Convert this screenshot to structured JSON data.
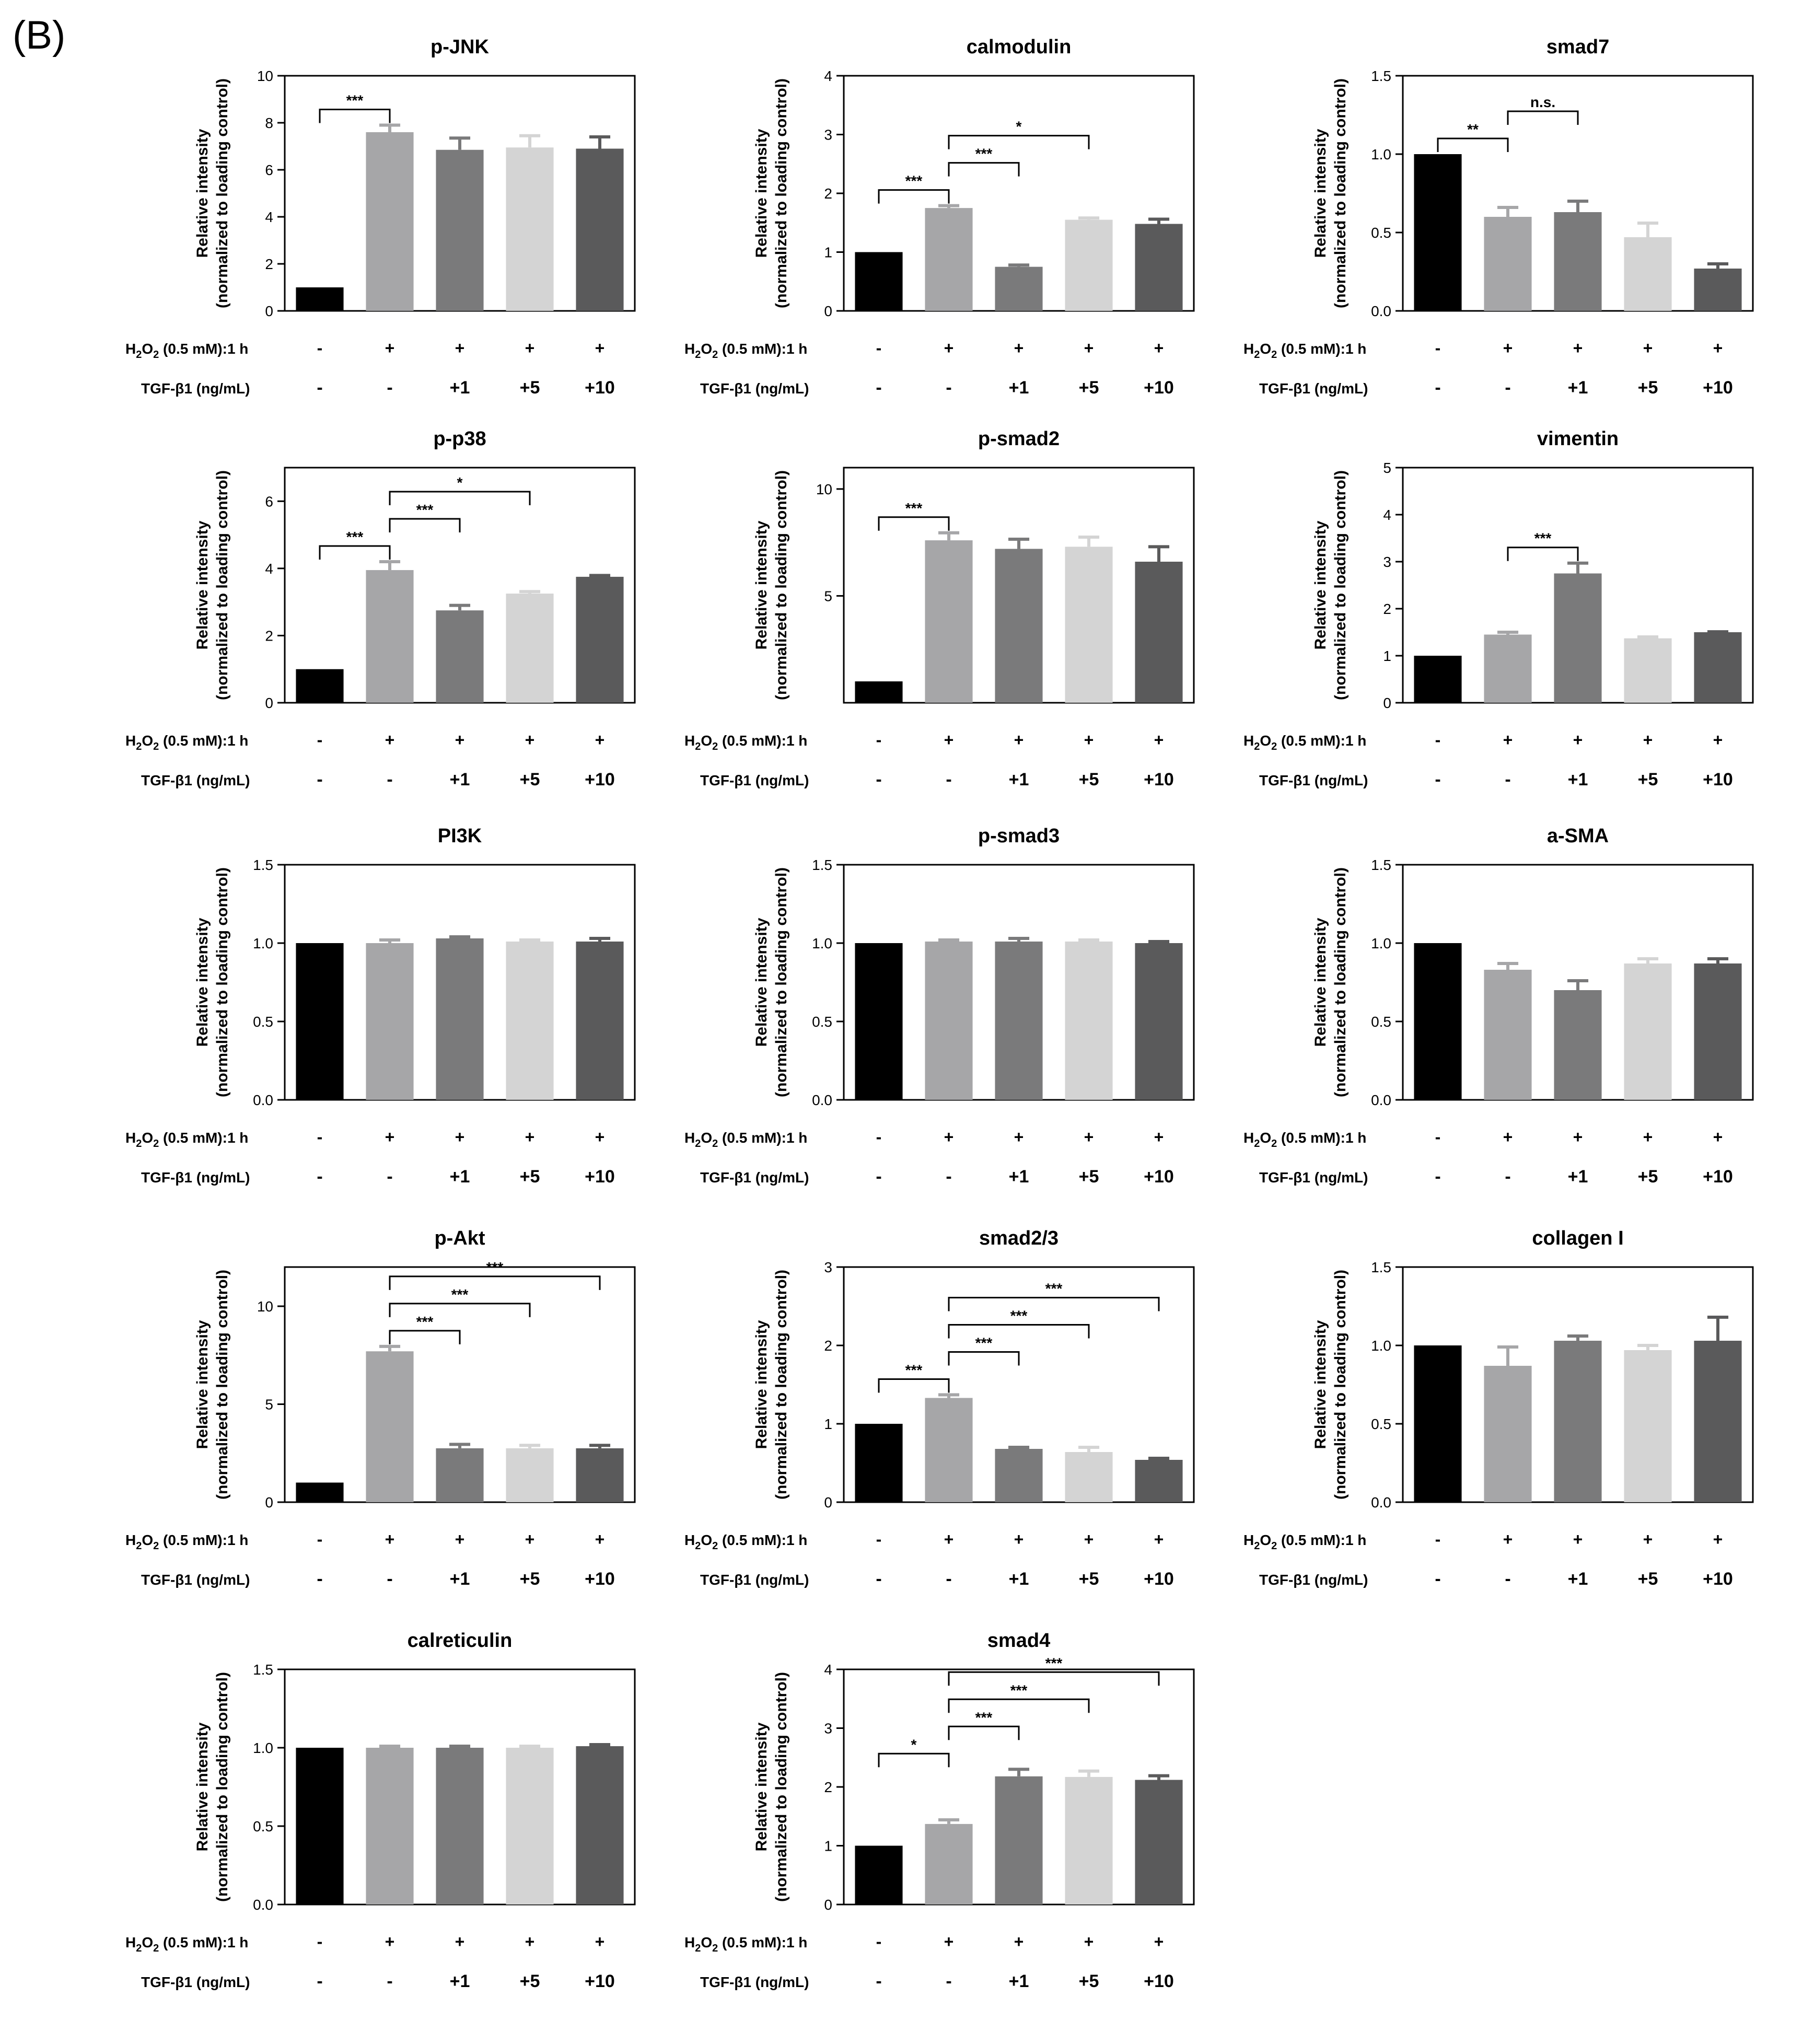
{
  "figure_label": "(B)",
  "y_axis_label_line1": "Relative intensity",
  "y_axis_label_line2": "(normalized to loading control)",
  "h2o2_label": "H2O2 (0.5 mM):1 h",
  "h2o2_values": [
    "-",
    "+",
    "+",
    "+",
    "+"
  ],
  "tgf_label": "TGF-β1 (ng/mL)",
  "tgf_values": [
    "-",
    "-",
    "+1",
    "+5",
    "+10"
  ],
  "bar_colors": [
    "#000000",
    "#a6a6a8",
    "#7a7a7b",
    "#d4d4d4",
    "#5a5a5b"
  ],
  "chart_data": [
    {
      "type": "bar",
      "title": "p-JNK",
      "ylim": [
        0,
        10
      ],
      "yticks": [
        "0",
        "2",
        "4",
        "6",
        "8",
        "10"
      ],
      "values": [
        1,
        7.6,
        6.85,
        6.95,
        6.9
      ],
      "errors": [
        0,
        0.3,
        0.5,
        0.5,
        0.5
      ],
      "brackets": [
        {
          "from": 0,
          "to": 1,
          "level": 0,
          "label": "***"
        }
      ]
    },
    {
      "type": "bar",
      "title": "calmodulin",
      "ylim": [
        0,
        4
      ],
      "yticks": [
        "0",
        "1",
        "2",
        "3",
        "4"
      ],
      "values": [
        1,
        1.75,
        0.75,
        1.55,
        1.48
      ],
      "errors": [
        0,
        0.04,
        0.03,
        0.03,
        0.08
      ],
      "brackets": [
        {
          "from": 0,
          "to": 1,
          "level": 0,
          "label": "***"
        },
        {
          "from": 1,
          "to": 2,
          "level": 1,
          "label": "***"
        },
        {
          "from": 1,
          "to": 3,
          "level": 2,
          "label": "*"
        }
      ]
    },
    {
      "type": "bar",
      "title": "smad7",
      "ylim": [
        0,
        1.5
      ],
      "yticks": [
        "0.0",
        "0.5",
        "1.0",
        "1.5"
      ],
      "values": [
        1,
        0.6,
        0.63,
        0.47,
        0.27
      ],
      "errors": [
        0,
        0.06,
        0.07,
        0.09,
        0.03
      ],
      "brackets": [
        {
          "from": 0,
          "to": 1,
          "level": 0,
          "label": "**"
        },
        {
          "from": 1,
          "to": 2,
          "level": 1,
          "label": "n.s."
        }
      ]
    },
    {
      "type": "bar",
      "title": "p-p38",
      "ylim": [
        0,
        7
      ],
      "yticks": [
        "0",
        "2",
        "4",
        "6"
      ],
      "values": [
        1,
        3.95,
        2.75,
        3.25,
        3.75
      ],
      "errors": [
        0,
        0.25,
        0.15,
        0.06,
        0.04
      ],
      "brackets": [
        {
          "from": 0,
          "to": 1,
          "level": 0,
          "label": "***"
        },
        {
          "from": 1,
          "to": 2,
          "level": 1,
          "label": "***"
        },
        {
          "from": 1,
          "to": 3,
          "level": 2,
          "label": "*"
        }
      ]
    },
    {
      "type": "bar",
      "title": "p-smad2",
      "ylim": [
        0,
        11
      ],
      "yticks": [
        "5",
        "10"
      ],
      "yticks_values": [
        5,
        10
      ],
      "values": [
        1,
        7.6,
        7.2,
        7.3,
        6.6
      ],
      "errors": [
        0,
        0.35,
        0.45,
        0.45,
        0.7
      ],
      "brackets": [
        {
          "from": 0,
          "to": 1,
          "level": 0,
          "label": "***"
        }
      ]
    },
    {
      "type": "bar",
      "title": "vimentin",
      "ylim": [
        0,
        5
      ],
      "yticks": [
        "0",
        "1",
        "2",
        "3",
        "4",
        "5"
      ],
      "values": [
        1,
        1.45,
        2.75,
        1.37,
        1.5
      ],
      "errors": [
        0,
        0.05,
        0.22,
        0.03,
        0.01
      ],
      "brackets": [
        {
          "from": 1,
          "to": 2,
          "level": 0,
          "label": "***"
        }
      ]
    },
    {
      "type": "bar",
      "title": "PI3K",
      "ylim": [
        0,
        1.5
      ],
      "yticks": [
        "0.0",
        "0.5",
        "1.0",
        "1.5"
      ],
      "values": [
        1,
        1.0,
        1.03,
        1.01,
        1.01
      ],
      "errors": [
        0,
        0.02,
        0.01,
        0.01,
        0.02
      ],
      "brackets": []
    },
    {
      "type": "bar",
      "title": "p-smad3",
      "ylim": [
        0,
        1.5
      ],
      "yticks": [
        "0.0",
        "0.5",
        "1.0",
        "1.5"
      ],
      "values": [
        1,
        1.01,
        1.01,
        1.01,
        1.0
      ],
      "errors": [
        0,
        0.01,
        0.02,
        0.01,
        0.01
      ],
      "brackets": []
    },
    {
      "type": "bar",
      "title": "a-SMA",
      "ylim": [
        0,
        1.5
      ],
      "yticks": [
        "0.0",
        "0.5",
        "1.0",
        "1.5"
      ],
      "values": [
        1,
        0.83,
        0.7,
        0.87,
        0.87
      ],
      "errors": [
        0,
        0.04,
        0.06,
        0.03,
        0.03
      ],
      "brackets": []
    },
    {
      "type": "bar",
      "title": "p-Akt",
      "ylim": [
        0,
        12
      ],
      "yticks": [
        "0",
        "5",
        "10"
      ],
      "values": [
        1,
        7.7,
        2.75,
        2.75,
        2.75
      ],
      "errors": [
        0,
        0.25,
        0.2,
        0.15,
        0.15
      ],
      "brackets": [
        {
          "from": 1,
          "to": 2,
          "level": 0,
          "label": "***"
        },
        {
          "from": 1,
          "to": 3,
          "level": 1,
          "label": "***"
        },
        {
          "from": 1,
          "to": 4,
          "level": 2,
          "label": "***"
        }
      ]
    },
    {
      "type": "bar",
      "title": "smad2/3",
      "ylim": [
        0,
        3
      ],
      "yticks": [
        "0",
        "1",
        "2",
        "3"
      ],
      "values": [
        1,
        1.33,
        0.68,
        0.64,
        0.54
      ],
      "errors": [
        0,
        0.04,
        0.02,
        0.06,
        0.02
      ],
      "brackets": [
        {
          "from": 0,
          "to": 1,
          "level": 0,
          "label": "***"
        },
        {
          "from": 1,
          "to": 2,
          "level": 1,
          "label": "***"
        },
        {
          "from": 1,
          "to": 3,
          "level": 2,
          "label": "***"
        },
        {
          "from": 1,
          "to": 4,
          "level": 3,
          "label": "***"
        }
      ]
    },
    {
      "type": "bar",
      "title": "collagen I",
      "ylim": [
        0,
        1.5
      ],
      "yticks": [
        "0.0",
        "0.5",
        "1.0",
        "1.5"
      ],
      "values": [
        1,
        0.87,
        1.03,
        0.97,
        1.03
      ],
      "errors": [
        0,
        0.12,
        0.03,
        0.03,
        0.15
      ],
      "brackets": []
    },
    {
      "type": "bar",
      "title": "calreticulin",
      "ylim": [
        0,
        1.5
      ],
      "yticks": [
        "0.0",
        "0.5",
        "1.0",
        "1.5"
      ],
      "values": [
        1,
        1.0,
        1.0,
        1.0,
        1.01
      ],
      "errors": [
        0,
        0.01,
        0.01,
        0.01,
        0.01
      ],
      "brackets": []
    },
    {
      "type": "bar",
      "title": "smad4",
      "ylim": [
        0,
        4
      ],
      "yticks": [
        "0",
        "1",
        "2",
        "3",
        "4"
      ],
      "values": [
        1,
        1.37,
        2.18,
        2.17,
        2.12
      ],
      "errors": [
        0,
        0.07,
        0.12,
        0.1,
        0.07
      ],
      "brackets": [
        {
          "from": 0,
          "to": 1,
          "level": 0,
          "label": "*"
        },
        {
          "from": 1,
          "to": 2,
          "level": 1,
          "label": "***"
        },
        {
          "from": 1,
          "to": 3,
          "level": 2,
          "label": "***"
        },
        {
          "from": 1,
          "to": 4,
          "level": 3,
          "label": "***"
        }
      ]
    }
  ]
}
